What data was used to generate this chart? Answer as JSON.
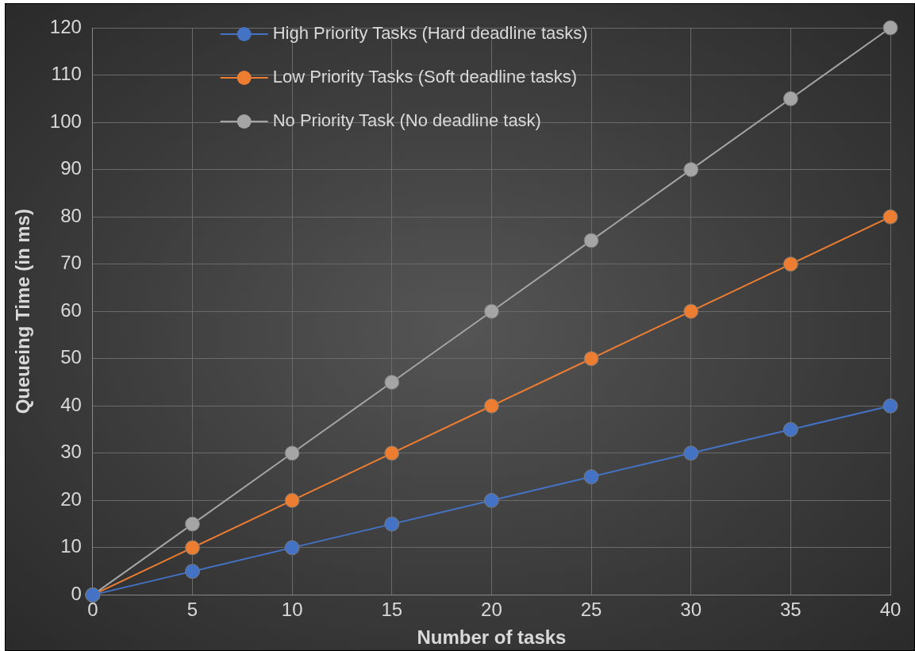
{
  "chart_data": {
    "type": "line",
    "xlabel": "Number of tasks",
    "ylabel": "Queueing Time (in ms)",
    "x": [
      0,
      5,
      10,
      15,
      20,
      25,
      30,
      35,
      40
    ],
    "series": [
      {
        "name": "High Priority Tasks (Hard deadline tasks)",
        "color": "#4472c4",
        "values": [
          0,
          5,
          10,
          15,
          20,
          25,
          30,
          35,
          40
        ]
      },
      {
        "name": "Low Priority Tasks (Soft deadline tasks)",
        "color": "#ed7d31",
        "values": [
          0,
          10,
          20,
          30,
          40,
          50,
          60,
          70,
          80
        ]
      },
      {
        "name": "No Priority Task (No deadline task)",
        "color": "#a5a5a5",
        "values": [
          0,
          15,
          30,
          45,
          60,
          75,
          90,
          105,
          120
        ]
      }
    ],
    "xlim": [
      0,
      40
    ],
    "xticks": [
      0,
      5,
      10,
      15,
      20,
      25,
      30,
      35,
      40
    ],
    "ylim": [
      0,
      120
    ],
    "yticks": [
      0,
      10,
      20,
      30,
      40,
      50,
      60,
      70,
      80,
      90,
      100,
      110,
      120
    ],
    "grid": true,
    "legend": "top",
    "marker": "circle",
    "line_style": "solid"
  }
}
